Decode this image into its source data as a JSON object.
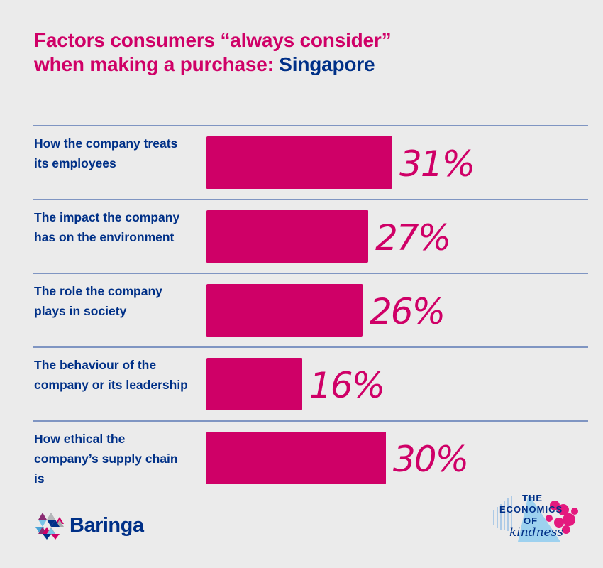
{
  "title": {
    "line1": "Factors consumers “always consider”",
    "line2_prefix": "when making a purchase: ",
    "line2_accent": "Singapore"
  },
  "colors": {
    "primary_magenta": "#cf0067",
    "brand_navy": "#003087",
    "divider": "#7f95c2",
    "background": "#ebebeb"
  },
  "rows": [
    {
      "label": "How the company treats its employees",
      "value_label": "31%"
    },
    {
      "label": "The impact the company has on the environment",
      "value_label": "27%"
    },
    {
      "label": "The role the company plays in society",
      "value_label": "26%"
    },
    {
      "label": "The behaviour of the company or its leadership",
      "value_label": "16%"
    },
    {
      "label": "How ethical the company’s supply chain is",
      "value_label": "30%"
    }
  ],
  "footer": {
    "brand_name": "Baringa",
    "campaign_logo": {
      "line1": "THE",
      "line2": "ECONOMICS",
      "line3": "OF",
      "line4": "kindness"
    }
  },
  "chart_data": {
    "type": "bar",
    "orientation": "horizontal",
    "title": "Factors consumers “always consider” when making a purchase: Singapore",
    "categories": [
      "How the company treats its employees",
      "The impact the company has on the environment",
      "The role the company plays in society",
      "The behaviour of the company or its leadership",
      "How ethical the company’s supply chain is"
    ],
    "values": [
      31,
      27,
      26,
      16,
      30
    ],
    "unit": "%",
    "xlabel": "",
    "ylabel": "",
    "xlim": [
      0,
      100
    ],
    "grid": false,
    "legend": null,
    "data_labels": [
      "31%",
      "27%",
      "26%",
      "16%",
      "30%"
    ]
  }
}
